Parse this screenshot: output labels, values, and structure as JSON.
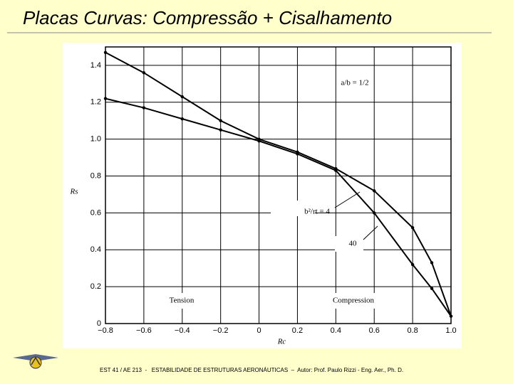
{
  "slide": {
    "title": "Placas Curvas: Compressão + Cisalhamento",
    "footer": "EST 41 / AE 213  -   ESTABILIDADE DE ESTRUTURAS AERONÁUTICAS  –  Autor: Prof. Paulo Rizzi - Eng. Aer., Ph. D."
  },
  "chart_data": {
    "type": "line",
    "x_label": "Rc",
    "y_label": "Rs",
    "x": [
      -0.8,
      -0.6,
      -0.4,
      -0.2,
      0,
      0.2,
      0.4,
      0.6,
      0.8,
      0.9,
      1.0
    ],
    "series": [
      {
        "name": "b²/rt = 4",
        "color": "#000000",
        "values": [
          1.47,
          1.36,
          1.23,
          1.1,
          1.0,
          0.93,
          0.84,
          0.72,
          0.52,
          0.33,
          0.04
        ]
      },
      {
        "name": "40",
        "color": "#000000",
        "values": [
          1.22,
          1.17,
          1.11,
          1.05,
          0.99,
          0.92,
          0.83,
          0.6,
          0.32,
          0.19,
          0.04
        ]
      }
    ],
    "annotations": [
      "a/b = 1/2",
      "Tension",
      "Compression"
    ],
    "xlim": [
      -0.8,
      1.0
    ],
    "xticks": [
      {
        "value": -0.8,
        "label": "−0.8"
      },
      {
        "value": -0.6,
        "label": "−0.6"
      },
      {
        "value": -0.4,
        "label": "−0.4"
      },
      {
        "value": -0.2,
        "label": "−0.2"
      },
      0,
      0.2,
      0.4,
      0.6,
      0.8,
      {
        "value": 1,
        "label": "1.0"
      }
    ],
    "ylim": [
      0,
      1.5
    ],
    "yticks": [
      0,
      0.2,
      0.4,
      0.6,
      0.8,
      {
        "value": 1,
        "label": "1.0"
      },
      1.2,
      1.4
    ],
    "grid": true
  }
}
